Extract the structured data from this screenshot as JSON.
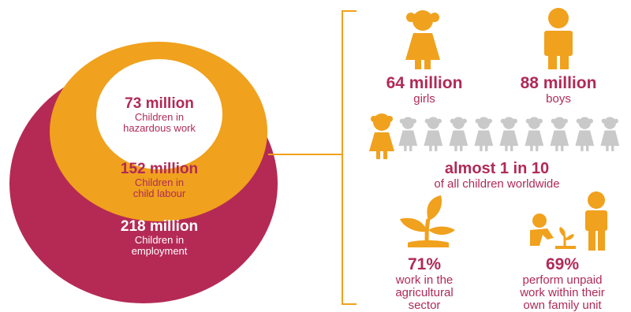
{
  "colors": {
    "maroon": "#b52a55",
    "orange": "#f0a11d",
    "white": "#ffffff",
    "gray": "#c9c9c9",
    "text": "#b02a56"
  },
  "circles": {
    "inner": {
      "value": "73 million",
      "label_line1": "Children in",
      "label_line2": "hazardous work"
    },
    "middle": {
      "value": "152 million",
      "label_line1": "Children in",
      "label_line2": "child labour"
    },
    "outer": {
      "value": "218 million",
      "label_line1": "Children in",
      "label_line2": "employment"
    }
  },
  "stats": {
    "girls": {
      "value": "64 million",
      "label": "girls",
      "icon": "girl-icon"
    },
    "boys": {
      "value": "88 million",
      "label": "boys",
      "icon": "boy-icon"
    },
    "ratio": {
      "value": "almost 1 in 10",
      "label": "of all children worldwide",
      "icon": "children-row-icon"
    },
    "agri": {
      "value": "71%",
      "label_line1": "work in the",
      "label_line2": "agricultural",
      "label_line3": "sector",
      "icon": "plant-icon"
    },
    "family": {
      "value": "69%",
      "label_line1": "perform unpaid",
      "label_line2": "work within their",
      "label_line3": "own family unit",
      "icon": "family-icon"
    }
  }
}
